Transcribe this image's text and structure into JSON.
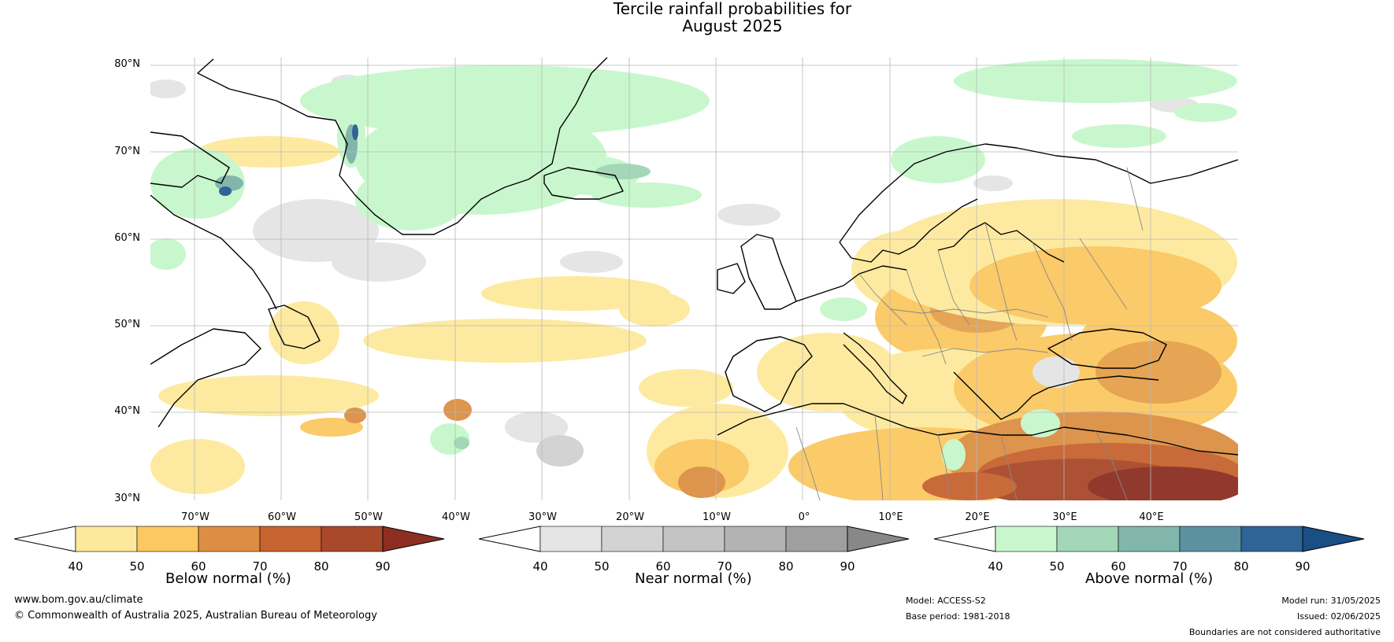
{
  "title": {
    "line1": "Tercile rainfall probabilities for",
    "line2": "August 2025"
  },
  "map": {
    "lat_ticks": [
      "80°N",
      "70°N",
      "60°N",
      "50°N",
      "40°N",
      "30°N"
    ],
    "lon_ticks": [
      "70°W",
      "60°W",
      "50°W",
      "40°W",
      "30°W",
      "20°W",
      "10°W",
      "0°",
      "10°E",
      "20°E",
      "30°E",
      "40°E"
    ],
    "lat_range": [
      30,
      81
    ],
    "lon_range": [
      -75,
      50
    ],
    "grid": true,
    "land_color": "#ffffff",
    "ocean_color": "#ffffff"
  },
  "colorbars": [
    {
      "label": "Below normal (%)",
      "ticks": [
        "40",
        "50",
        "60",
        "70",
        "80",
        "90"
      ],
      "colors": [
        "#ffffff",
        "#fde99b",
        "#fbc862",
        "#dc8f43",
        "#c6632f",
        "#a9482a",
        "#8c2f22"
      ]
    },
    {
      "label": "Near normal (%)",
      "ticks": [
        "40",
        "50",
        "60",
        "70",
        "80",
        "90"
      ],
      "colors": [
        "#ffffff",
        "#e5e5e5",
        "#d3d3d3",
        "#c4c4c4",
        "#b3b3b3",
        "#9f9f9f",
        "#888888"
      ]
    },
    {
      "label": "Above normal (%)",
      "ticks": [
        "40",
        "50",
        "60",
        "70",
        "80",
        "90"
      ],
      "colors": [
        "#ffffff",
        "#c9f7cd",
        "#a4d7b7",
        "#82b6ad",
        "#5b91a1",
        "#2e6596",
        "#184f84"
      ]
    }
  ],
  "footer": {
    "url": "www.bom.gov.au/climate",
    "copyright": "© Commonwealth of Australia 2025, Australian Bureau of Meteorology",
    "model": "Model: ACCESS-S2",
    "base_period": "Base period: 1981-2018",
    "model_run": "Model run: 31/05/2025",
    "issued": "Issued: 02/06/2025",
    "disclaimer": "Boundaries are not considered authoritative"
  }
}
